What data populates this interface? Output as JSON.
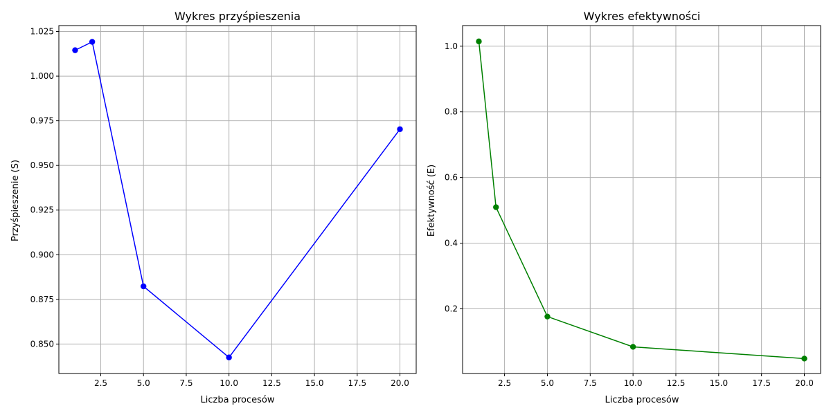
{
  "chart_data": [
    {
      "type": "line",
      "title": "Wykres przyśpieszenia",
      "xlabel": "Liczba procesów",
      "ylabel": "Przyśpieszenie (S)",
      "color": "#0000ff",
      "grid": true,
      "xlim": [
        0.05,
        20.95
      ],
      "ylim": [
        0.8335,
        1.0283
      ],
      "xticks": [
        2.5,
        5.0,
        7.5,
        10.0,
        12.5,
        15.0,
        17.5,
        20.0
      ],
      "xtick_labels": [
        "2.5",
        "5.0",
        "7.5",
        "10.0",
        "12.5",
        "15.0",
        "17.5",
        "20.0"
      ],
      "yticks": [
        0.85,
        0.875,
        0.9,
        0.925,
        0.95,
        0.975,
        1.0,
        1.025
      ],
      "ytick_labels": [
        "0.850",
        "0.875",
        "0.900",
        "0.925",
        "0.950",
        "0.975",
        "1.000",
        "1.025"
      ],
      "x": [
        1,
        2,
        5,
        10,
        20
      ],
      "y": [
        1.0145,
        1.0192,
        0.8823,
        0.8425,
        0.9703
      ]
    },
    {
      "type": "line",
      "title": "Wykres efektywności",
      "xlabel": "Liczba procesów",
      "ylabel": "Efektywność (E)",
      "color": "#008000",
      "grid": true,
      "xlim": [
        0.05,
        20.95
      ],
      "ylim": [
        0.0031,
        1.0627
      ],
      "xticks": [
        2.5,
        5.0,
        7.5,
        10.0,
        12.5,
        15.0,
        17.5,
        20.0
      ],
      "xtick_labels": [
        "2.5",
        "5.0",
        "7.5",
        "10.0",
        "12.5",
        "15.0",
        "17.5",
        "20.0"
      ],
      "yticks": [
        0.2,
        0.4,
        0.6,
        0.8,
        1.0
      ],
      "ytick_labels": [
        "0.2",
        "0.4",
        "0.6",
        "0.8",
        "1.0"
      ],
      "x": [
        1,
        2,
        5,
        10,
        20
      ],
      "y": [
        1.0145,
        0.5096,
        0.1765,
        0.0843,
        0.0485
      ]
    }
  ]
}
